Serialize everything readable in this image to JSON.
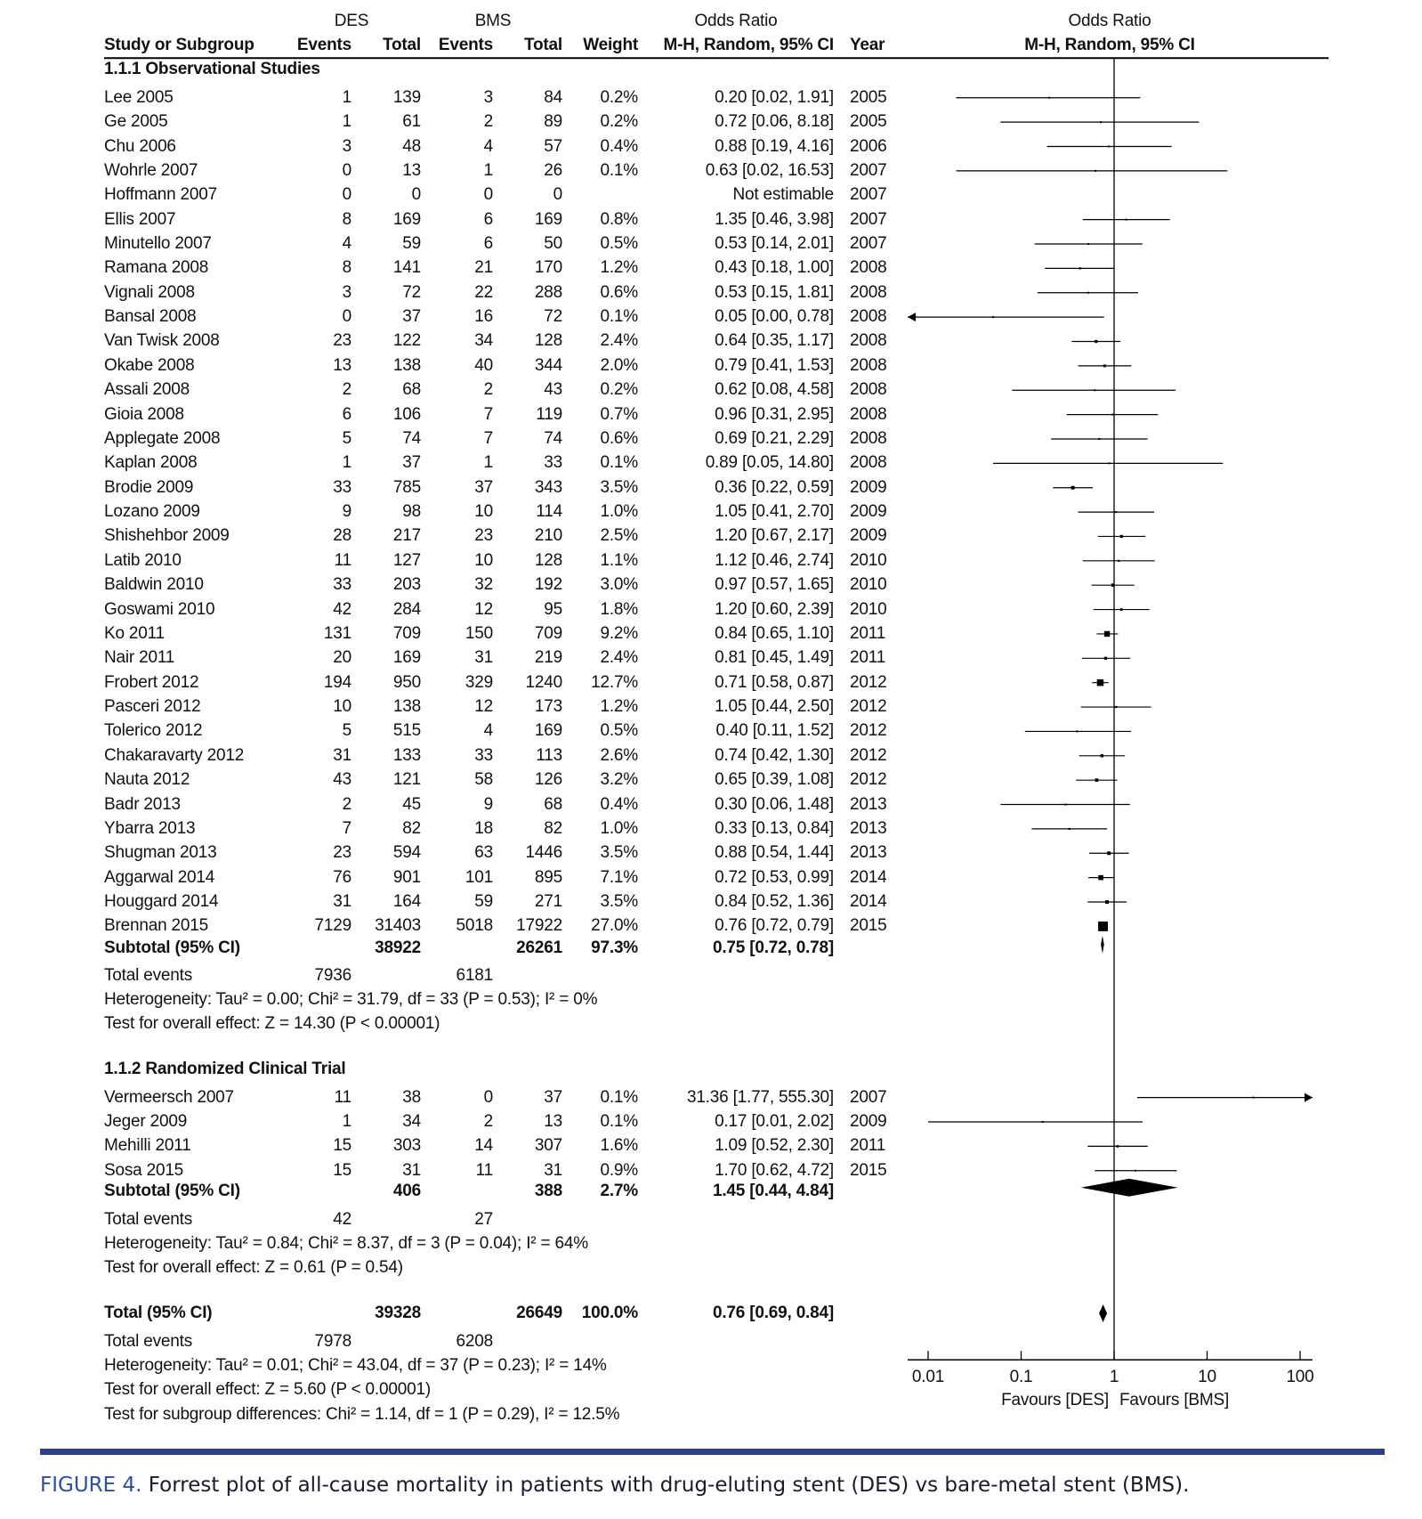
{
  "chart_data": {
    "type": "forest",
    "scale": "log",
    "xlim": [
      0.01,
      100
    ],
    "xticks": [
      "0.01",
      "0.1",
      "1",
      "10",
      "100"
    ],
    "xlabel_left": "Favours [DES]",
    "xlabel_right": "Favours [BMS]",
    "headers": {
      "des": "DES",
      "bms": "BMS",
      "or_table": "Odds Ratio",
      "or_plot": "Odds Ratio",
      "study": "Study or Subgroup",
      "events": "Events",
      "total": "Total",
      "weight": "Weight",
      "method": "M-H, Random, 95% CI",
      "year": "Year",
      "method_plot": "M-H, Random, 95% CI"
    },
    "subgroups": [
      {
        "label": "1.1.1 Observational Studies",
        "studies": [
          {
            "name": "Lee 2005",
            "de": "1",
            "dt": "139",
            "be": "3",
            "bt": "84",
            "w": "0.2%",
            "ci": "0.20 [0.02, 1.91]",
            "year": "2005",
            "or": 0.2,
            "lo": 0.02,
            "hi": 1.91
          },
          {
            "name": "Ge 2005",
            "de": "1",
            "dt": "61",
            "be": "2",
            "bt": "89",
            "w": "0.2%",
            "ci": "0.72 [0.06, 8.18]",
            "year": "2005",
            "or": 0.72,
            "lo": 0.06,
            "hi": 8.18
          },
          {
            "name": "Chu 2006",
            "de": "3",
            "dt": "48",
            "be": "4",
            "bt": "57",
            "w": "0.4%",
            "ci": "0.88 [0.19, 4.16]",
            "year": "2006",
            "or": 0.88,
            "lo": 0.19,
            "hi": 4.16
          },
          {
            "name": "Wohrle 2007",
            "de": "0",
            "dt": "13",
            "be": "1",
            "bt": "26",
            "w": "0.1%",
            "ci": "0.63 [0.02, 16.53]",
            "year": "2007",
            "or": 0.63,
            "lo": 0.02,
            "hi": 16.53
          },
          {
            "name": "Hoffmann 2007",
            "de": "0",
            "dt": "0",
            "be": "0",
            "bt": "0",
            "w": "",
            "ci": "Not estimable",
            "year": "2007",
            "or": null,
            "lo": null,
            "hi": null
          },
          {
            "name": "Ellis 2007",
            "de": "8",
            "dt": "169",
            "be": "6",
            "bt": "169",
            "w": "0.8%",
            "ci": "1.35 [0.46, 3.98]",
            "year": "2007",
            "or": 1.35,
            "lo": 0.46,
            "hi": 3.98
          },
          {
            "name": "Minutello 2007",
            "de": "4",
            "dt": "59",
            "be": "6",
            "bt": "50",
            "w": "0.5%",
            "ci": "0.53 [0.14, 2.01]",
            "year": "2007",
            "or": 0.53,
            "lo": 0.14,
            "hi": 2.01
          },
          {
            "name": "Ramana 2008",
            "de": "8",
            "dt": "141",
            "be": "21",
            "bt": "170",
            "w": "1.2%",
            "ci": "0.43 [0.18, 1.00]",
            "year": "2008",
            "or": 0.43,
            "lo": 0.18,
            "hi": 1.0
          },
          {
            "name": "Vignali 2008",
            "de": "3",
            "dt": "72",
            "be": "22",
            "bt": "288",
            "w": "0.6%",
            "ci": "0.53 [0.15, 1.81]",
            "year": "2008",
            "or": 0.53,
            "lo": 0.15,
            "hi": 1.81
          },
          {
            "name": "Bansal 2008",
            "de": "0",
            "dt": "37",
            "be": "16",
            "bt": "72",
            "w": "0.1%",
            "ci": "0.05 [0.00, 0.78]",
            "year": "2008",
            "or": 0.05,
            "lo": 0.003,
            "hi": 0.78
          },
          {
            "name": "Van Twisk 2008",
            "de": "23",
            "dt": "122",
            "be": "34",
            "bt": "128",
            "w": "2.4%",
            "ci": "0.64 [0.35, 1.17]",
            "year": "2008",
            "or": 0.64,
            "lo": 0.35,
            "hi": 1.17
          },
          {
            "name": "Okabe 2008",
            "de": "13",
            "dt": "138",
            "be": "40",
            "bt": "344",
            "w": "2.0%",
            "ci": "0.79 [0.41, 1.53]",
            "year": "2008",
            "or": 0.79,
            "lo": 0.41,
            "hi": 1.53
          },
          {
            "name": "Assali 2008",
            "de": "2",
            "dt": "68",
            "be": "2",
            "bt": "43",
            "w": "0.2%",
            "ci": "0.62 [0.08, 4.58]",
            "year": "2008",
            "or": 0.62,
            "lo": 0.08,
            "hi": 4.58
          },
          {
            "name": "Gioia 2008",
            "de": "6",
            "dt": "106",
            "be": "7",
            "bt": "119",
            "w": "0.7%",
            "ci": "0.96 [0.31, 2.95]",
            "year": "2008",
            "or": 0.96,
            "lo": 0.31,
            "hi": 2.95
          },
          {
            "name": "Applegate 2008",
            "de": "5",
            "dt": "74",
            "be": "7",
            "bt": "74",
            "w": "0.6%",
            "ci": "0.69 [0.21, 2.29]",
            "year": "2008",
            "or": 0.69,
            "lo": 0.21,
            "hi": 2.29
          },
          {
            "name": "Kaplan 2008",
            "de": "1",
            "dt": "37",
            "be": "1",
            "bt": "33",
            "w": "0.1%",
            "ci": "0.89 [0.05, 14.80]",
            "year": "2008",
            "or": 0.89,
            "lo": 0.05,
            "hi": 14.8
          },
          {
            "name": "Brodie 2009",
            "de": "33",
            "dt": "785",
            "be": "37",
            "bt": "343",
            "w": "3.5%",
            "ci": "0.36 [0.22, 0.59]",
            "year": "2009",
            "or": 0.36,
            "lo": 0.22,
            "hi": 0.59
          },
          {
            "name": "Lozano 2009",
            "de": "9",
            "dt": "98",
            "be": "10",
            "bt": "114",
            "w": "1.0%",
            "ci": "1.05 [0.41, 2.70]",
            "year": "2009",
            "or": 1.05,
            "lo": 0.41,
            "hi": 2.7
          },
          {
            "name": "Shishehbor 2009",
            "de": "28",
            "dt": "217",
            "be": "23",
            "bt": "210",
            "w": "2.5%",
            "ci": "1.20 [0.67, 2.17]",
            "year": "2009",
            "or": 1.2,
            "lo": 0.67,
            "hi": 2.17
          },
          {
            "name": "Latib 2010",
            "de": "11",
            "dt": "127",
            "be": "10",
            "bt": "128",
            "w": "1.1%",
            "ci": "1.12 [0.46, 2.74]",
            "year": "2010",
            "or": 1.12,
            "lo": 0.46,
            "hi": 2.74
          },
          {
            "name": "Baldwin 2010",
            "de": "33",
            "dt": "203",
            "be": "32",
            "bt": "192",
            "w": "3.0%",
            "ci": "0.97 [0.57, 1.65]",
            "year": "2010",
            "or": 0.97,
            "lo": 0.57,
            "hi": 1.65
          },
          {
            "name": "Goswami 2010",
            "de": "42",
            "dt": "284",
            "be": "12",
            "bt": "95",
            "w": "1.8%",
            "ci": "1.20 [0.60, 2.39]",
            "year": "2010",
            "or": 1.2,
            "lo": 0.6,
            "hi": 2.39
          },
          {
            "name": "Ko 2011",
            "de": "131",
            "dt": "709",
            "be": "150",
            "bt": "709",
            "w": "9.2%",
            "ci": "0.84 [0.65, 1.10]",
            "year": "2011",
            "or": 0.84,
            "lo": 0.65,
            "hi": 1.1
          },
          {
            "name": "Nair 2011",
            "de": "20",
            "dt": "169",
            "be": "31",
            "bt": "219",
            "w": "2.4%",
            "ci": "0.81 [0.45, 1.49]",
            "year": "2011",
            "or": 0.81,
            "lo": 0.45,
            "hi": 1.49
          },
          {
            "name": "Frobert 2012",
            "de": "194",
            "dt": "950",
            "be": "329",
            "bt": "1240",
            "w": "12.7%",
            "ci": "0.71 [0.58, 0.87]",
            "year": "2012",
            "or": 0.71,
            "lo": 0.58,
            "hi": 0.87
          },
          {
            "name": "Pasceri 2012",
            "de": "10",
            "dt": "138",
            "be": "12",
            "bt": "173",
            "w": "1.2%",
            "ci": "1.05 [0.44, 2.50]",
            "year": "2012",
            "or": 1.05,
            "lo": 0.44,
            "hi": 2.5
          },
          {
            "name": "Tolerico 2012",
            "de": "5",
            "dt": "515",
            "be": "4",
            "bt": "169",
            "w": "0.5%",
            "ci": "0.40 [0.11, 1.52]",
            "year": "2012",
            "or": 0.4,
            "lo": 0.11,
            "hi": 1.52
          },
          {
            "name": "Chakaravarty 2012",
            "de": "31",
            "dt": "133",
            "be": "33",
            "bt": "113",
            "w": "2.6%",
            "ci": "0.74 [0.42, 1.30]",
            "year": "2012",
            "or": 0.74,
            "lo": 0.42,
            "hi": 1.3
          },
          {
            "name": "Nauta 2012",
            "de": "43",
            "dt": "121",
            "be": "58",
            "bt": "126",
            "w": "3.2%",
            "ci": "0.65 [0.39, 1.08]",
            "year": "2012",
            "or": 0.65,
            "lo": 0.39,
            "hi": 1.08
          },
          {
            "name": "Badr 2013",
            "de": "2",
            "dt": "45",
            "be": "9",
            "bt": "68",
            "w": "0.4%",
            "ci": "0.30 [0.06, 1.48]",
            "year": "2013",
            "or": 0.3,
            "lo": 0.06,
            "hi": 1.48
          },
          {
            "name": "Ybarra 2013",
            "de": "7",
            "dt": "82",
            "be": "18",
            "bt": "82",
            "w": "1.0%",
            "ci": "0.33 [0.13, 0.84]",
            "year": "2013",
            "or": 0.33,
            "lo": 0.13,
            "hi": 0.84
          },
          {
            "name": "Shugman 2013",
            "de": "23",
            "dt": "594",
            "be": "63",
            "bt": "1446",
            "w": "3.5%",
            "ci": "0.88 [0.54, 1.44]",
            "year": "2013",
            "or": 0.88,
            "lo": 0.54,
            "hi": 1.44
          },
          {
            "name": "Aggarwal 2014",
            "de": "76",
            "dt": "901",
            "be": "101",
            "bt": "895",
            "w": "7.1%",
            "ci": "0.72 [0.53, 0.99]",
            "year": "2014",
            "or": 0.72,
            "lo": 0.53,
            "hi": 0.99
          },
          {
            "name": "Houggard 2014",
            "de": "31",
            "dt": "164",
            "be": "59",
            "bt": "271",
            "w": "3.5%",
            "ci": "0.84 [0.52, 1.36]",
            "year": "2014",
            "or": 0.84,
            "lo": 0.52,
            "hi": 1.36
          },
          {
            "name": "Brennan 2015",
            "de": "7129",
            "dt": "31403",
            "be": "5018",
            "bt": "17922",
            "w": "27.0%",
            "ci": "0.76 [0.72, 0.79]",
            "year": "2015",
            "or": 0.76,
            "lo": 0.72,
            "hi": 0.79
          }
        ],
        "subtotal": {
          "label": "Subtotal (95% CI)",
          "dt": "38922",
          "bt": "26261",
          "w": "97.3%",
          "ci": "0.75 [0.72, 0.78]",
          "or": 0.75,
          "lo": 0.72,
          "hi": 0.78
        },
        "total_events": {
          "label": "Total events",
          "de": "7936",
          "be": "6181"
        },
        "heterogeneity": "Heterogeneity: Tau² = 0.00; Chi² = 31.79, df = 33 (P = 0.53); I² = 0%",
        "overall": "Test for overall effect: Z = 14.30 (P < 0.00001)"
      },
      {
        "label": "1.1.2 Randomized Clinical Trial",
        "studies": [
          {
            "name": "Vermeersch 2007",
            "de": "11",
            "dt": "38",
            "be": "0",
            "bt": "37",
            "w": "0.1%",
            "ci": "31.36 [1.77, 555.30]",
            "year": "2007",
            "or": 31.36,
            "lo": 1.77,
            "hi": 555.3
          },
          {
            "name": "Jeger 2009",
            "de": "1",
            "dt": "34",
            "be": "2",
            "bt": "13",
            "w": "0.1%",
            "ci": "0.17 [0.01, 2.02]",
            "year": "2009",
            "or": 0.17,
            "lo": 0.01,
            "hi": 2.02
          },
          {
            "name": "Mehilli 2011",
            "de": "15",
            "dt": "303",
            "be": "14",
            "bt": "307",
            "w": "1.6%",
            "ci": "1.09 [0.52, 2.30]",
            "year": "2011",
            "or": 1.09,
            "lo": 0.52,
            "hi": 2.3
          },
          {
            "name": "Sosa 2015",
            "de": "15",
            "dt": "31",
            "be": "11",
            "bt": "31",
            "w": "0.9%",
            "ci": "1.70 [0.62, 4.72]",
            "year": "2015",
            "or": 1.7,
            "lo": 0.62,
            "hi": 4.72
          }
        ],
        "subtotal": {
          "label": "Subtotal (95% CI)",
          "dt": "406",
          "bt": "388",
          "w": "2.7%",
          "ci": "1.45 [0.44, 4.84]",
          "or": 1.45,
          "lo": 0.44,
          "hi": 4.84
        },
        "total_events": {
          "label": "Total events",
          "de": "42",
          "be": "27"
        },
        "heterogeneity": "Heterogeneity: Tau² = 0.84; Chi² = 8.37, df = 3 (P = 0.04); I² = 64%",
        "overall": "Test for overall effect: Z = 0.61 (P = 0.54)"
      }
    ],
    "total": {
      "label": "Total (95% CI)",
      "dt": "39328",
      "bt": "26649",
      "w": "100.0%",
      "ci": "0.76 [0.69, 0.84]",
      "or": 0.76,
      "lo": 0.69,
      "hi": 0.84
    },
    "total_events": {
      "label": "Total events",
      "de": "7978",
      "be": "6208"
    },
    "heterogeneity": "Heterogeneity: Tau² = 0.01; Chi² = 43.04, df = 37 (P = 0.23); I² = 14%",
    "overall": "Test for overall effect: Z = 5.60 (P < 0.00001)",
    "subgroup_diff": "Test for subgroup differences: Chi² = 1.14, df = 1 (P = 0.29), I² = 12.5%"
  },
  "caption": {
    "figure": "FIGURE 4.",
    "text": " Forrest plot of all-cause mortality in patients with drug-eluting stent (DES) vs bare-metal stent (BMS)."
  },
  "colors": {
    "rule": "#2e3f8a",
    "figure_label": "#2e4fa0",
    "marks": "#000000"
  }
}
